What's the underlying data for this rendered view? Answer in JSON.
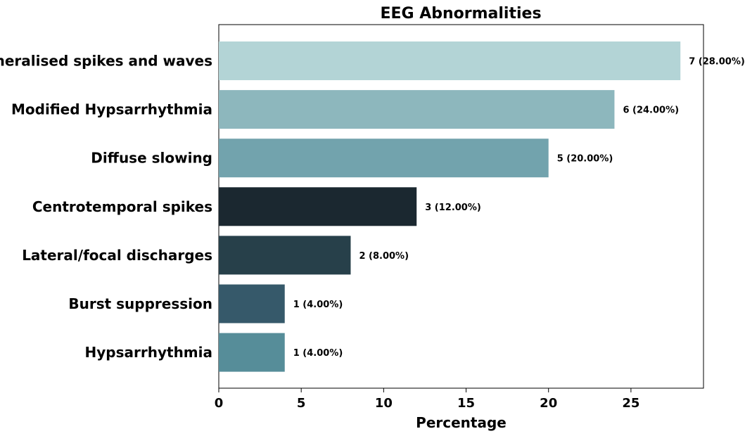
{
  "chart_data": {
    "type": "bar",
    "orientation": "horizontal",
    "title": "EEG Abnormalities",
    "xlabel": "Percentage",
    "ylabel": "",
    "xlim": [
      0,
      29.4
    ],
    "xticks": [
      0,
      5,
      10,
      15,
      20,
      25
    ],
    "grid": false,
    "categories": [
      "Generalised spikes and waves",
      "Modified Hypsarrhythmia",
      "Diffuse slowing",
      "Centrotemporal spikes",
      "Lateral/focal discharges",
      "Burst suppression",
      "Hypsarrhythmia"
    ],
    "values": [
      28,
      24,
      20,
      12,
      8,
      4,
      4
    ],
    "data_labels": [
      "7 (28.00%)",
      "6 (24.00%)",
      "5 (20.00%)",
      "3 (12.00%)",
      "2 (8.00%)",
      "1 (4.00%)",
      "1 (4.00%)"
    ],
    "colors": [
      "#b3d4d6",
      "#8db7bd",
      "#72a3ad",
      "#1b2830",
      "#27404a",
      "#36596a",
      "#568d99"
    ]
  }
}
